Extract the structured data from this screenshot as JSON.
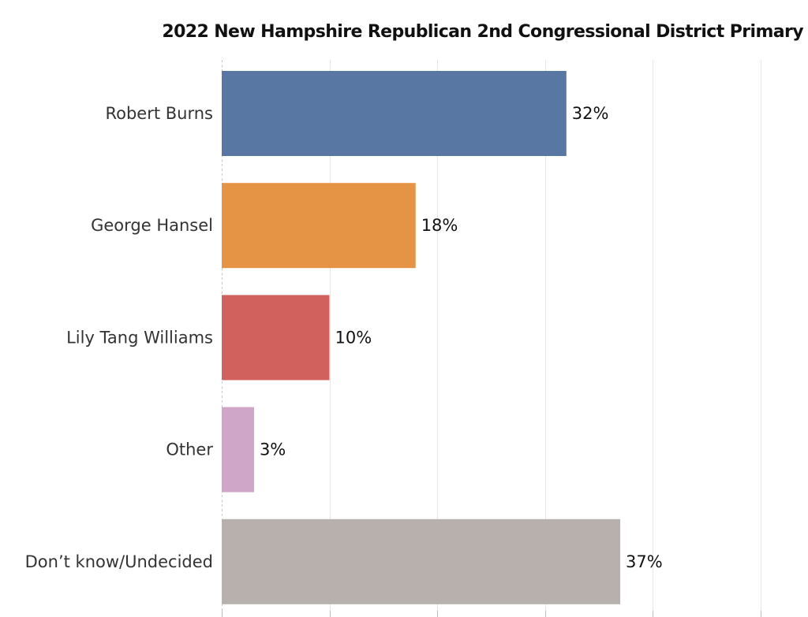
{
  "chart_data": {
    "type": "bar",
    "orientation": "horizontal",
    "title": "2022 New Hampshire Republican 2nd Congressional District Primary",
    "categories": [
      "Robert Burns",
      "George Hansel",
      "Lily Tang Williams",
      "Other",
      "Don’t know/Undecided"
    ],
    "values": [
      32,
      18,
      10,
      3,
      37
    ],
    "value_labels": [
      "32%",
      "18%",
      "10%",
      "3%",
      "37%"
    ],
    "colors": [
      "#5878a3",
      "#e49444",
      "#d1615d",
      "#cfa6c8",
      "#b8b0ac"
    ],
    "unit": "%",
    "xlim": [
      0,
      50
    ],
    "x_gridlines": [
      0,
      10,
      20,
      30,
      40,
      50
    ],
    "grid": true,
    "legend": "none"
  }
}
